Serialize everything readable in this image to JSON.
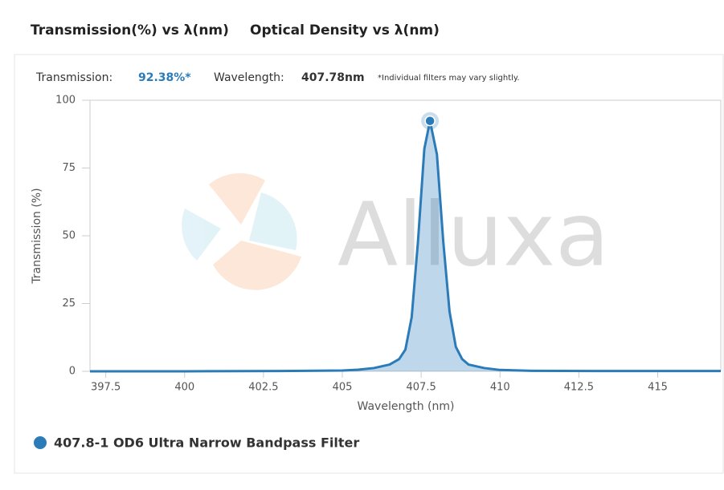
{
  "tabs": [
    "Transmission(%) vs λ(nm)",
    "Optical Density vs λ(nm)"
  ],
  "readout": {
    "transmission_label": "Transmission:",
    "transmission_value": "92.38%*",
    "wavelength_label": "Wavelength:",
    "wavelength_value": "407.78nm",
    "note": "*Individual filters may vary slightly."
  },
  "chart_data": {
    "type": "area",
    "watermark": "Alluxa",
    "x_label": "Wavelength (nm)",
    "y_label": "Transmission (%)",
    "x": [
      397,
      400,
      403,
      405,
      405.5,
      406,
      406.5,
      406.8,
      407.0,
      407.2,
      407.4,
      407.6,
      407.78,
      408.0,
      408.2,
      408.4,
      408.6,
      408.8,
      409.0,
      409.5,
      410,
      411,
      413,
      417
    ],
    "series": [
      {
        "name": "407.8-1 OD6 Ultra Narrow Bandpass Filter",
        "color": "#2b7bb9",
        "values": [
          0,
          0,
          0.1,
          0.3,
          0.6,
          1.2,
          2.5,
          4.5,
          8,
          20,
          48,
          82,
          92.38,
          80,
          48,
          22,
          9,
          4.5,
          2.5,
          1.2,
          0.5,
          0.2,
          0.1,
          0.1
        ]
      }
    ],
    "xlim": [
      397,
      417
    ],
    "ylim": [
      0,
      100
    ],
    "xticks": [
      397.5,
      400,
      402.5,
      405,
      407.5,
      410,
      412.5,
      415
    ],
    "yticks": [
      0,
      25,
      50,
      75,
      100
    ]
  }
}
